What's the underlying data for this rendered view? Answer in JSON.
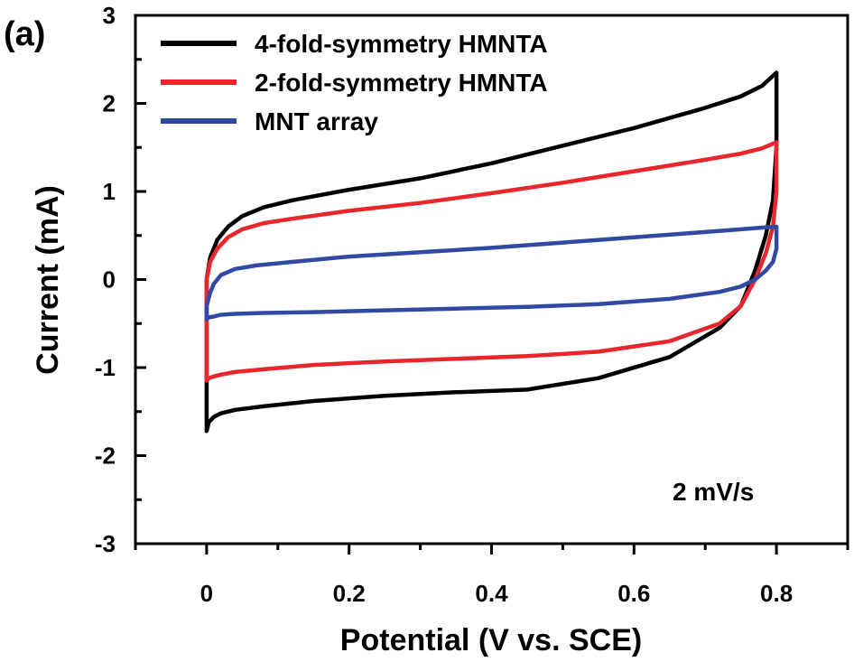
{
  "chart_data": {
    "type": "line",
    "panel_label": "(a)",
    "xlabel": "Potential (V vs. SCE)",
    "ylabel": "Current (mA)",
    "xlim": [
      -0.1,
      0.9
    ],
    "ylim": [
      -3,
      3
    ],
    "xticks": [
      0,
      0.2,
      0.4,
      0.6,
      0.8
    ],
    "xtick_labels": [
      "0",
      "0.2",
      "0.4",
      "0.6",
      "0.8"
    ],
    "yticks": [
      -3,
      -2,
      -1,
      0,
      1,
      2,
      3
    ],
    "ytick_labels": [
      "-3",
      "-2",
      "-1",
      "0",
      "1",
      "2",
      "3"
    ],
    "annotation": "2 mV/s",
    "legend_position": "top-left",
    "grid": false,
    "series": [
      {
        "name": "4-fold-symmetry HMNTA",
        "color": "#000000",
        "x": [
          0.0,
          0.005,
          0.015,
          0.03,
          0.05,
          0.08,
          0.12,
          0.2,
          0.3,
          0.4,
          0.5,
          0.6,
          0.7,
          0.75,
          0.78,
          0.8,
          0.8,
          0.795,
          0.785,
          0.77,
          0.75,
          0.72,
          0.65,
          0.55,
          0.45,
          0.35,
          0.25,
          0.15,
          0.08,
          0.04,
          0.02,
          0.01,
          0.003,
          0.0
        ],
        "y": [
          0.0,
          0.25,
          0.45,
          0.6,
          0.72,
          0.82,
          0.9,
          1.02,
          1.15,
          1.32,
          1.52,
          1.72,
          1.95,
          2.08,
          2.2,
          2.35,
          1.5,
          0.9,
          0.5,
          0.1,
          -0.3,
          -0.55,
          -0.88,
          -1.12,
          -1.25,
          -1.28,
          -1.32,
          -1.38,
          -1.44,
          -1.48,
          -1.52,
          -1.56,
          -1.62,
          -1.72
        ]
      },
      {
        "name": "2-fold-symmetry HMNTA",
        "color": "#e8262b",
        "x": [
          0.0,
          0.005,
          0.015,
          0.03,
          0.05,
          0.08,
          0.12,
          0.2,
          0.3,
          0.4,
          0.5,
          0.6,
          0.7,
          0.75,
          0.78,
          0.8,
          0.8,
          0.795,
          0.785,
          0.77,
          0.75,
          0.72,
          0.65,
          0.55,
          0.45,
          0.35,
          0.25,
          0.15,
          0.08,
          0.04,
          0.02,
          0.01,
          0.003,
          0.0
        ],
        "y": [
          0.0,
          0.2,
          0.35,
          0.48,
          0.57,
          0.64,
          0.69,
          0.78,
          0.87,
          0.98,
          1.1,
          1.23,
          1.36,
          1.43,
          1.49,
          1.56,
          1.0,
          0.6,
          0.3,
          0.0,
          -0.3,
          -0.5,
          -0.7,
          -0.82,
          -0.87,
          -0.9,
          -0.93,
          -0.97,
          -1.02,
          -1.05,
          -1.08,
          -1.1,
          -1.12,
          -1.15
        ]
      },
      {
        "name": "MNT array",
        "color": "#3049a3",
        "x": [
          0.0,
          0.005,
          0.01,
          0.02,
          0.04,
          0.07,
          0.12,
          0.2,
          0.3,
          0.4,
          0.5,
          0.6,
          0.7,
          0.75,
          0.78,
          0.8,
          0.8,
          0.795,
          0.785,
          0.77,
          0.75,
          0.72,
          0.65,
          0.55,
          0.45,
          0.35,
          0.25,
          0.15,
          0.08,
          0.04,
          0.02,
          0.01,
          0.003,
          0.0
        ],
        "y": [
          -0.3,
          -0.15,
          -0.05,
          0.05,
          0.12,
          0.16,
          0.2,
          0.26,
          0.31,
          0.36,
          0.42,
          0.48,
          0.54,
          0.57,
          0.59,
          0.6,
          0.35,
          0.2,
          0.1,
          0.0,
          -0.08,
          -0.14,
          -0.22,
          -0.28,
          -0.31,
          -0.33,
          -0.35,
          -0.37,
          -0.38,
          -0.39,
          -0.4,
          -0.42,
          -0.43,
          -0.45
        ]
      }
    ]
  }
}
